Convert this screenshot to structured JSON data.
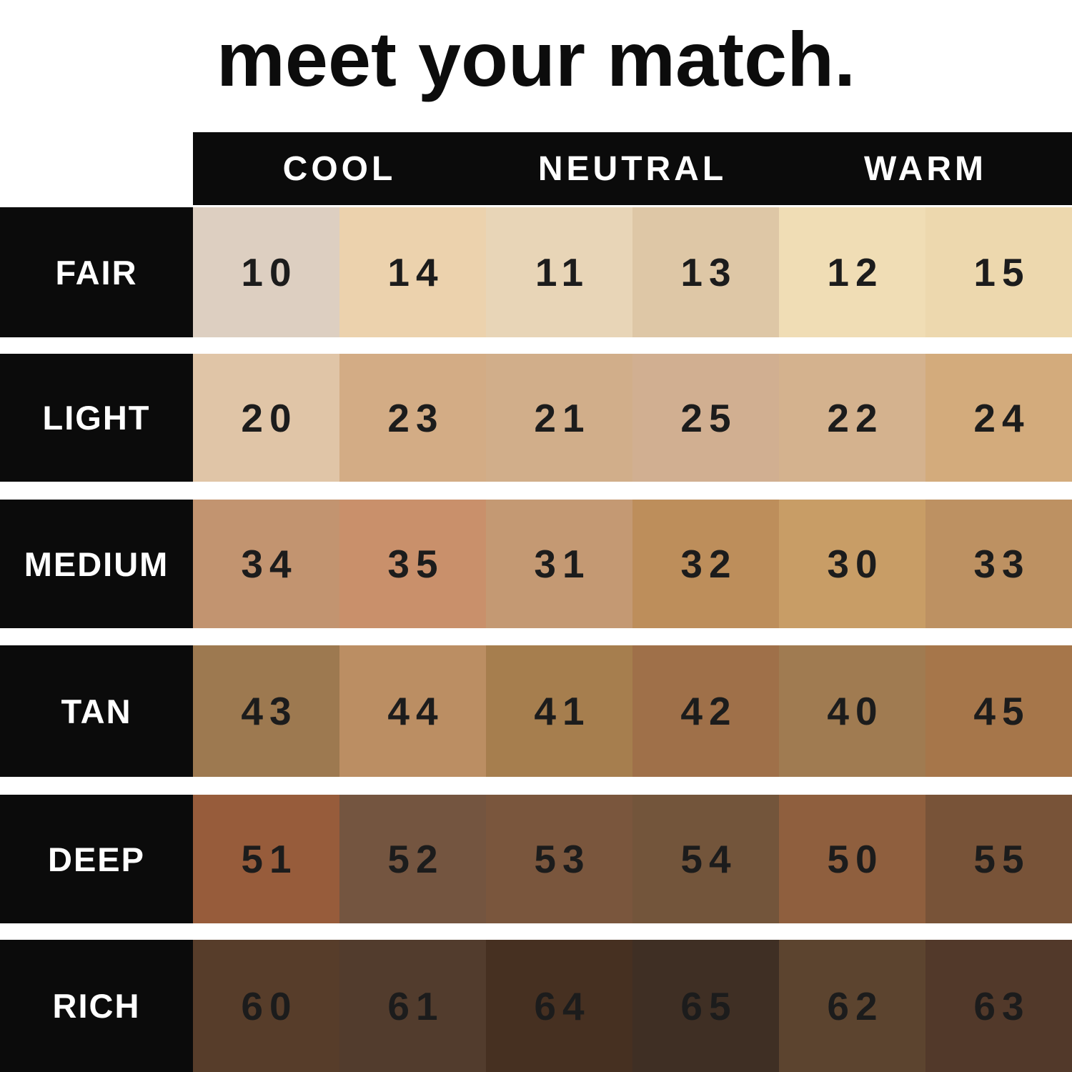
{
  "colors": {
    "background": "#ffffff",
    "band_black": "#0b0b0b",
    "header_text": "#ffffff",
    "number_text": "#1c1c1c",
    "title_text": "#0c0c0c"
  },
  "chart_data": {
    "type": "table",
    "title": "meet your match.",
    "legend_position": "none",
    "grid": false,
    "column_groups": [
      {
        "label": "COOL"
      },
      {
        "label": "NEUTRAL"
      },
      {
        "label": "WARM"
      }
    ],
    "columns_per_group": 2,
    "rows": [
      {
        "label": "FAIR",
        "shades": [
          {
            "number": "10",
            "undertone": "COOL",
            "color": "#ddcfc1"
          },
          {
            "number": "14",
            "undertone": "COOL",
            "color": "#ecd2ad"
          },
          {
            "number": "11",
            "undertone": "NEUTRAL",
            "color": "#e8d5b7"
          },
          {
            "number": "13",
            "undertone": "NEUTRAL",
            "color": "#dec7a6"
          },
          {
            "number": "12",
            "undertone": "WARM",
            "color": "#f0ddb5"
          },
          {
            "number": "15",
            "undertone": "WARM",
            "color": "#edd8ae"
          }
        ]
      },
      {
        "label": "LIGHT",
        "shades": [
          {
            "number": "20",
            "undertone": "COOL",
            "color": "#e0c5a7"
          },
          {
            "number": "23",
            "undertone": "COOL",
            "color": "#d3ac85"
          },
          {
            "number": "21",
            "undertone": "NEUTRAL",
            "color": "#d1ae8a"
          },
          {
            "number": "25",
            "undertone": "NEUTRAL",
            "color": "#d1af91"
          },
          {
            "number": "22",
            "undertone": "WARM",
            "color": "#d4b28e"
          },
          {
            "number": "24",
            "undertone": "WARM",
            "color": "#d3ab7c"
          }
        ]
      },
      {
        "label": "MEDIUM",
        "shades": [
          {
            "number": "34",
            "undertone": "COOL",
            "color": "#c29470"
          },
          {
            "number": "35",
            "undertone": "COOL",
            "color": "#c9906b"
          },
          {
            "number": "31",
            "undertone": "NEUTRAL",
            "color": "#c49973"
          },
          {
            "number": "32",
            "undertone": "NEUTRAL",
            "color": "#bd8e5b"
          },
          {
            "number": "30",
            "undertone": "WARM",
            "color": "#c89d66"
          },
          {
            "number": "33",
            "undertone": "WARM",
            "color": "#bd9162"
          }
        ]
      },
      {
        "label": "TAN",
        "shades": [
          {
            "number": "43",
            "undertone": "COOL",
            "color": "#9d7950"
          },
          {
            "number": "44",
            "undertone": "COOL",
            "color": "#bb8e63"
          },
          {
            "number": "41",
            "undertone": "NEUTRAL",
            "color": "#a67e4e"
          },
          {
            "number": "42",
            "undertone": "NEUTRAL",
            "color": "#9f7049"
          },
          {
            "number": "40",
            "undertone": "WARM",
            "color": "#a07b51"
          },
          {
            "number": "45",
            "undertone": "WARM",
            "color": "#a6764a"
          }
        ]
      },
      {
        "label": "DEEP",
        "shades": [
          {
            "number": "51",
            "undertone": "COOL",
            "color": "#975c3b"
          },
          {
            "number": "52",
            "undertone": "COOL",
            "color": "#745540"
          },
          {
            "number": "53",
            "undertone": "NEUTRAL",
            "color": "#7a563d"
          },
          {
            "number": "54",
            "undertone": "NEUTRAL",
            "color": "#73553b"
          },
          {
            "number": "50",
            "undertone": "WARM",
            "color": "#8f5f3e"
          },
          {
            "number": "55",
            "undertone": "WARM",
            "color": "#785338"
          }
        ]
      },
      {
        "label": "RICH",
        "shades": [
          {
            "number": "60",
            "undertone": "COOL",
            "color": "#573d2a"
          },
          {
            "number": "61",
            "undertone": "COOL",
            "color": "#523c2d"
          },
          {
            "number": "64",
            "undertone": "NEUTRAL",
            "color": "#463021"
          },
          {
            "number": "65",
            "undertone": "NEUTRAL",
            "color": "#3f2f24"
          },
          {
            "number": "62",
            "undertone": "WARM",
            "color": "#5c442f"
          },
          {
            "number": "63",
            "undertone": "WARM",
            "color": "#52392a"
          }
        ]
      }
    ]
  }
}
